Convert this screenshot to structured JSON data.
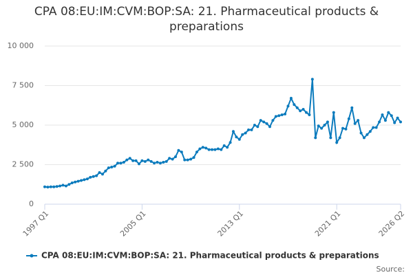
{
  "chart_data": {
    "type": "line",
    "title": "CPA 08:EU:IM:CVM:BOP:SA: 21. Pharmaceutical products & preparations",
    "source": "Source:",
    "categories": [
      "1997 Q1",
      null,
      null,
      null,
      null,
      null,
      null,
      null,
      null,
      null,
      null,
      null,
      null,
      null,
      null,
      null,
      null,
      null,
      null,
      null,
      null,
      null,
      null,
      null,
      null,
      null,
      null,
      null,
      null,
      null,
      null,
      null,
      "2005 Q1",
      null,
      null,
      null,
      null,
      null,
      null,
      null,
      null,
      null,
      null,
      null,
      null,
      null,
      null,
      null,
      null,
      null,
      null,
      null,
      null,
      null,
      null,
      null,
      null,
      null,
      null,
      null,
      null,
      null,
      null,
      null,
      "2013 Q1",
      null,
      null,
      null,
      null,
      null,
      null,
      null,
      null,
      null,
      null,
      null,
      null,
      null,
      null,
      null,
      null,
      null,
      null,
      null,
      null,
      null,
      null,
      null,
      null,
      null,
      null,
      null,
      null,
      null,
      null,
      null,
      "2021 Q1",
      null,
      null,
      null,
      null,
      null,
      null,
      null,
      null,
      null,
      null,
      null,
      null,
      null,
      null,
      null,
      null,
      null,
      null,
      null,
      null,
      "2026 Q2"
    ],
    "series": [
      {
        "name": "CPA 08:EU:IM:CVM:BOP:SA: 21. Pharmaceutical products & preparations",
        "color": "#0b7bbd",
        "values": [
          1100,
          1080,
          1100,
          1100,
          1120,
          1150,
          1200,
          1150,
          1250,
          1350,
          1400,
          1450,
          1500,
          1550,
          1600,
          1700,
          1750,
          1800,
          2000,
          1900,
          2100,
          2300,
          2350,
          2400,
          2600,
          2600,
          2650,
          2800,
          2900,
          2750,
          2750,
          2550,
          2750,
          2700,
          2800,
          2700,
          2600,
          2650,
          2600,
          2650,
          2700,
          2900,
          2850,
          3000,
          3400,
          3300,
          2800,
          2800,
          2850,
          2950,
          3300,
          3500,
          3600,
          3550,
          3450,
          3450,
          3450,
          3500,
          3450,
          3700,
          3600,
          3900,
          4600,
          4250,
          4100,
          4400,
          4500,
          4700,
          4700,
          5000,
          4900,
          5300,
          5200,
          5100,
          4900,
          5300,
          5550,
          5600,
          5650,
          5700,
          6200,
          6700,
          6300,
          6100,
          5900,
          6000,
          5800,
          5650,
          7900,
          4200,
          4950,
          4800,
          5000,
          5200,
          4200,
          5800,
          3900,
          4200,
          4800,
          4750,
          5400,
          6100,
          5100,
          5300,
          4500,
          4200,
          4400,
          4600,
          4850,
          4850,
          5200,
          5650,
          5300,
          5800,
          5600,
          5150,
          5450,
          5200
        ]
      }
    ],
    "ylim": [
      0,
      10000
    ],
    "yticks": [
      0,
      {
        "value": 2500,
        "label": "2 500"
      },
      {
        "value": 5000,
        "label": "5 000"
      },
      {
        "value": 7500,
        "label": "7 500"
      },
      {
        "value": 10000,
        "label": "10 000"
      }
    ],
    "grid": true
  }
}
